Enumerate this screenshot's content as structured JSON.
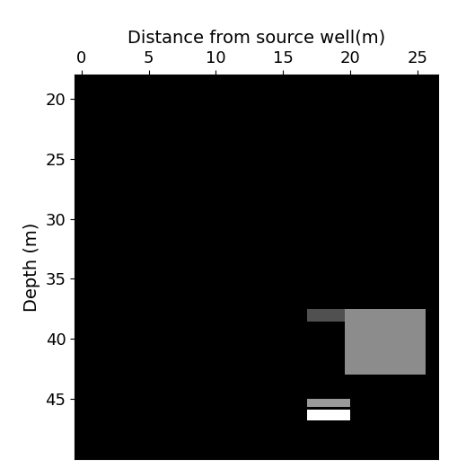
{
  "chart_data": {
    "type": "region_map",
    "x_label": "Distance from source well(m)",
    "y_label": "Depth (m)",
    "xlim": [
      -0.5,
      26.5
    ],
    "xticks": [
      0,
      5,
      10,
      15,
      20,
      25
    ],
    "ylim": [
      50,
      18
    ],
    "yticks": [
      20,
      25,
      30,
      35,
      40,
      45
    ],
    "background": "#000000",
    "regions": [
      {
        "x": [
          16.8,
          20.0
        ],
        "y": [
          45.9,
          46.8
        ],
        "color": "#ffffff"
      },
      {
        "x": [
          16.8,
          20.0
        ],
        "y": [
          45.0,
          45.7
        ],
        "color": "#9a9a9a"
      },
      {
        "x": [
          19.6,
          25.6
        ],
        "y": [
          37.5,
          43.0
        ],
        "color": "#8c8c8c"
      },
      {
        "x": [
          16.8,
          19.6
        ],
        "y": [
          37.5,
          38.6
        ],
        "color": "#505050"
      }
    ]
  }
}
